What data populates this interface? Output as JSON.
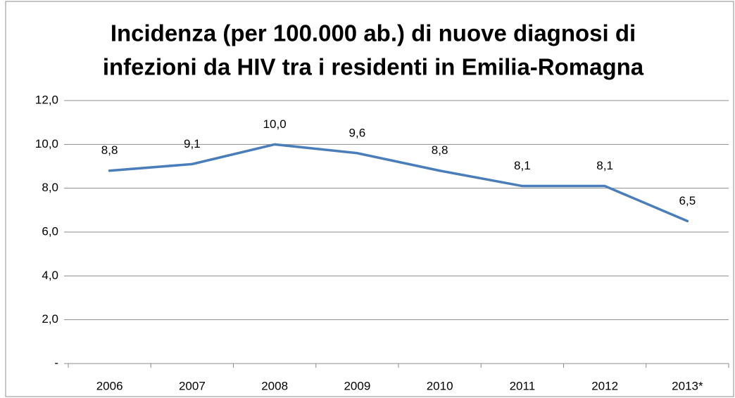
{
  "chart_data": {
    "type": "line",
    "title": [
      "Incidenza (per 100.000 ab.) di nuove diagnosi di",
      "infezioni da HIV tra i residenti in Emilia-Romagna"
    ],
    "categories": [
      "2006",
      "2007",
      "2008",
      "2009",
      "2010",
      "2011",
      "2012",
      "2013*"
    ],
    "values": [
      8.8,
      9.1,
      10.0,
      9.6,
      8.8,
      8.1,
      8.1,
      6.5
    ],
    "value_labels": [
      "8,8",
      "9,1",
      "10,0",
      "9,6",
      "8,8",
      "8,1",
      "8,1",
      "6,5"
    ],
    "color": "#4a7ebb",
    "ylim": [
      0,
      12
    ],
    "yticks": [
      {
        "value": 0,
        "label": "-"
      },
      {
        "value": 2,
        "label": "2,0"
      },
      {
        "value": 4,
        "label": "4,0"
      },
      {
        "value": 6,
        "label": "6,0"
      },
      {
        "value": 8,
        "label": "8,0"
      },
      {
        "value": 10,
        "label": "10,0"
      },
      {
        "value": 12,
        "label": "12,0"
      }
    ],
    "grid": true
  }
}
